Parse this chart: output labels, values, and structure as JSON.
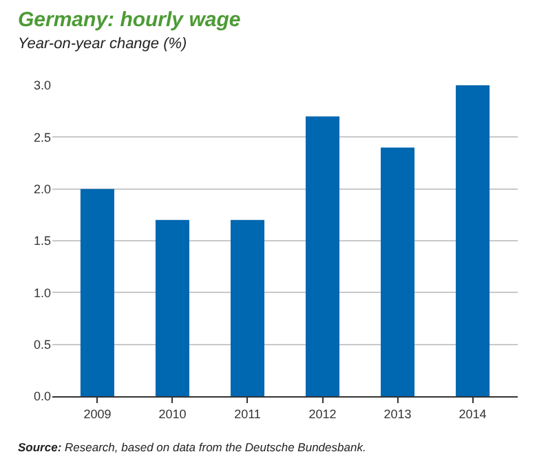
{
  "chart_data": {
    "type": "bar",
    "title": "Germany: hourly wage",
    "subtitle": "Year-on-year change (%)",
    "categories": [
      "2009",
      "2010",
      "2011",
      "2012",
      "2013",
      "2014"
    ],
    "values": [
      2.0,
      1.7,
      1.7,
      2.7,
      2.4,
      3.0
    ],
    "color": "#0067b1",
    "ylim": [
      0,
      3.0
    ],
    "yticks": [
      {
        "value": 0,
        "label": "0.0"
      },
      {
        "value": 0.5,
        "label": "0.5"
      },
      {
        "value": 1.0,
        "label": "1.0"
      },
      {
        "value": 1.5,
        "label": "1.5"
      },
      {
        "value": 2.0,
        "label": "2.0"
      },
      {
        "value": 2.5,
        "label": "2.5"
      },
      {
        "value": 3.0,
        "label": "3.0"
      }
    ],
    "grid": "y",
    "annotations": [
      "Source: Research, based on data from the Deutsche Bundesbank."
    ]
  }
}
